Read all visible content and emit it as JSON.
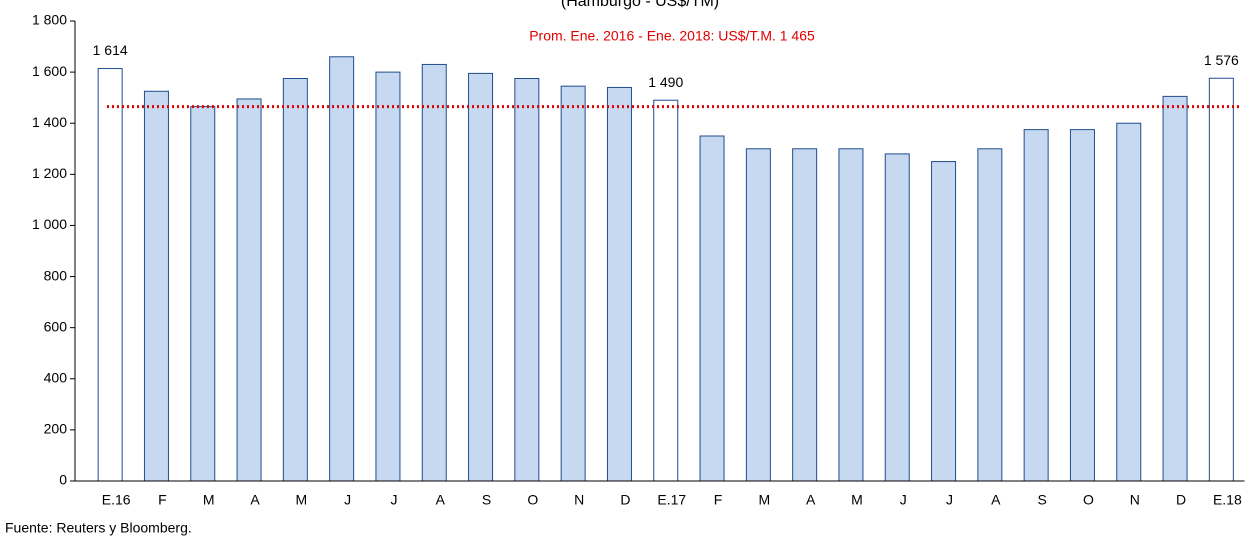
{
  "chart_data": {
    "type": "bar",
    "subtitle": "(Hamburgo - US$/TM)",
    "annotation": "Prom. Ene. 2016 - Ene. 2018: US$/T.M. 1 465",
    "average": 1465,
    "average_color": "#e00000",
    "source": "Fuente: Reuters y Bloomberg.",
    "categories": [
      "E.16",
      "F",
      "M",
      "A",
      "M",
      "J",
      "J",
      "A",
      "S",
      "O",
      "N",
      "D",
      "E.17",
      "F",
      "M",
      "A",
      "M",
      "J",
      "J",
      "A",
      "S",
      "O",
      "N",
      "D",
      "E.18"
    ],
    "values": [
      1614,
      1525,
      1465,
      1495,
      1575,
      1660,
      1600,
      1630,
      1595,
      1575,
      1545,
      1540,
      1490,
      1350,
      1300,
      1300,
      1300,
      1280,
      1250,
      1300,
      1375,
      1375,
      1400,
      1505,
      1576
    ],
    "value_labels": [
      "1 614",
      null,
      null,
      null,
      null,
      null,
      null,
      null,
      null,
      null,
      null,
      null,
      "1 490",
      null,
      null,
      null,
      null,
      null,
      null,
      null,
      null,
      null,
      null,
      null,
      "1 576"
    ],
    "colors": [
      "#ffffff",
      "#c6d9f1",
      "#c6d9f1",
      "#c6d9f1",
      "#c6d9f1",
      "#c6d9f1",
      "#c6d9f1",
      "#c6d9f1",
      "#c6d9f1",
      "#c6d9f1",
      "#c6d9f1",
      "#c6d9f1",
      "#ffffff",
      "#c6d9f1",
      "#c6d9f1",
      "#c6d9f1",
      "#c6d9f1",
      "#c6d9f1",
      "#c6d9f1",
      "#c6d9f1",
      "#c6d9f1",
      "#c6d9f1",
      "#c6d9f1",
      "#c6d9f1",
      "#ffffff"
    ],
    "edge_color": "#1f4e8c",
    "ylim": [
      0,
      1800
    ],
    "yticks": [
      0,
      200,
      400,
      600,
      800,
      {
        "value": 1000,
        "label": "1 000"
      },
      {
        "value": 1200,
        "label": "1 200"
      },
      {
        "value": 1400,
        "label": "1 400"
      },
      {
        "value": 1600,
        "label": "1 600"
      },
      {
        "value": 1800,
        "label": "1 800"
      }
    ]
  }
}
